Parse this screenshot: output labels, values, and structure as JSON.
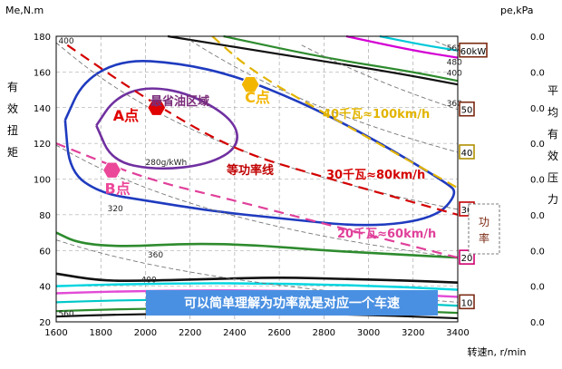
{
  "chart_data": {
    "type": "line",
    "xlabel": "转速n, r/min",
    "ylabel": "Me,N.m",
    "ylabel_right": "pe,kPa",
    "left_vertical_label": [
      "有",
      "效",
      "扭",
      "矩"
    ],
    "right_vertical_label": [
      "平",
      "均",
      "有",
      "效",
      "压",
      "力"
    ],
    "xlim": [
      1600,
      3400
    ],
    "ylim": [
      20,
      180
    ],
    "x_ticks": [
      1600,
      1800,
      2000,
      2200,
      2400,
      2600,
      2800,
      3000,
      3200,
      3400
    ],
    "y_ticks": [
      20,
      40,
      60,
      80,
      100,
      120,
      140,
      160,
      180
    ],
    "right_tick_labels": [
      "0.0",
      "0.0",
      "0.0",
      "0.0",
      "0.0",
      "0.0",
      "0.0",
      "0.0",
      "0.0"
    ],
    "grid": true,
    "bsfc_contours": [
      {
        "label": "280g/kWh",
        "color": "#7030a0",
        "points": [
          [
            1780,
            130
          ],
          [
            1860,
            145
          ],
          [
            2000,
            152
          ],
          [
            2200,
            148
          ],
          [
            2400,
            133
          ],
          [
            2420,
            118
          ],
          [
            2280,
            108
          ],
          [
            2050,
            105
          ],
          [
            1850,
            110
          ],
          [
            1780,
            130
          ]
        ]
      },
      {
        "label": "320",
        "color": "#1f3bbf",
        "points": [
          [
            1640,
            133
          ],
          [
            1720,
            155
          ],
          [
            1900,
            167
          ],
          [
            2150,
            165
          ],
          [
            2400,
            158
          ],
          [
            2700,
            143
          ],
          [
            3000,
            124
          ],
          [
            3350,
            98
          ],
          [
            3400,
            92
          ],
          [
            3300,
            78
          ],
          [
            3000,
            73
          ],
          [
            2600,
            78
          ],
          [
            2300,
            82
          ],
          [
            2000,
            88
          ],
          [
            1800,
            92
          ],
          [
            1660,
            104
          ],
          [
            1640,
            133
          ]
        ]
      },
      {
        "label": "360",
        "color": "#2e8b2e",
        "points": [
          [
            1600,
            70
          ],
          [
            1700,
            64
          ],
          [
            1900,
            62
          ],
          [
            2200,
            64
          ],
          [
            2500,
            63
          ],
          [
            2800,
            60
          ],
          [
            3100,
            58
          ],
          [
            3400,
            56
          ]
        ]
      },
      {
        "label": "400",
        "color": "#111111",
        "points": [
          [
            1600,
            47
          ],
          [
            1800,
            43
          ],
          [
            2000,
            43
          ],
          [
            2300,
            44
          ],
          [
            2600,
            45
          ],
          [
            2900,
            44
          ],
          [
            3200,
            43
          ],
          [
            3400,
            42
          ]
        ]
      }
    ],
    "contour_labels": [
      {
        "text": "400",
        "x": 1610,
        "y": 176
      },
      {
        "text": "280g/kWh",
        "x": 2000,
        "y": 108
      },
      {
        "text": "320",
        "x": 1830,
        "y": 82
      },
      {
        "text": "360",
        "x": 2010,
        "y": 56
      },
      {
        "text": "400",
        "x": 1980,
        "y": 42
      },
      {
        "text": "560",
        "x": 1610,
        "y": 23
      },
      {
        "text": "560",
        "x": 3350,
        "y": 172
      },
      {
        "text": "480",
        "x": 3350,
        "y": 164
      },
      {
        "text": "400",
        "x": 3350,
        "y": 158
      },
      {
        "text": "360",
        "x": 3350,
        "y": 141
      }
    ],
    "power_lines": [
      {
        "label": "60kW",
        "color": "#7b2a12",
        "tag_y": 172
      },
      {
        "label": "50",
        "color": "#7b2a12",
        "tag_y": 139
      },
      {
        "label": "40",
        "color": "#b08f00",
        "tag_y": 115
      },
      {
        "label": "30",
        "color": "#c00000",
        "tag_y": 83
      },
      {
        "label": "20",
        "color": "#d00070",
        "tag_y": 56
      },
      {
        "label": "10",
        "color": "#7b2a12",
        "tag_y": 31
      }
    ],
    "side_label_power": "功率",
    "annotation_lines": [
      {
        "label": "30千瓦≈80km/h",
        "color": "#d40000",
        "points": [
          [
            1650,
            175
          ],
          [
            2000,
            145
          ],
          [
            2400,
            116
          ],
          [
            2800,
            101
          ],
          [
            3400,
            80
          ]
        ]
      },
      {
        "label": "40千瓦≈100km/h",
        "color": "#e2b400",
        "points": [
          [
            2300,
            180
          ],
          [
            2480,
            160
          ],
          [
            2900,
            130
          ],
          [
            3400,
            95
          ]
        ]
      },
      {
        "label": "20千瓦≈60km/h",
        "color": "#e0409a",
        "points": [
          [
            1600,
            120
          ],
          [
            2000,
            100
          ],
          [
            2400,
            88
          ],
          [
            2800,
            75
          ],
          [
            3400,
            56
          ]
        ]
      }
    ],
    "region_label": "最省油区域",
    "power_line_label": "等功率线",
    "points": [
      {
        "label": "A点",
        "x": 2050,
        "y": 140,
        "color": "#e00000",
        "shape": "hexagon"
      },
      {
        "label": "B点",
        "x": 1850,
        "y": 105,
        "color": "#ec4899",
        "shape": "hexagon"
      },
      {
        "label": "C点",
        "x": 2470,
        "y": 153,
        "color": "#f2b600",
        "shape": "hexagon"
      }
    ],
    "banner": "可以简单理解为功率就是对应一个车速"
  }
}
